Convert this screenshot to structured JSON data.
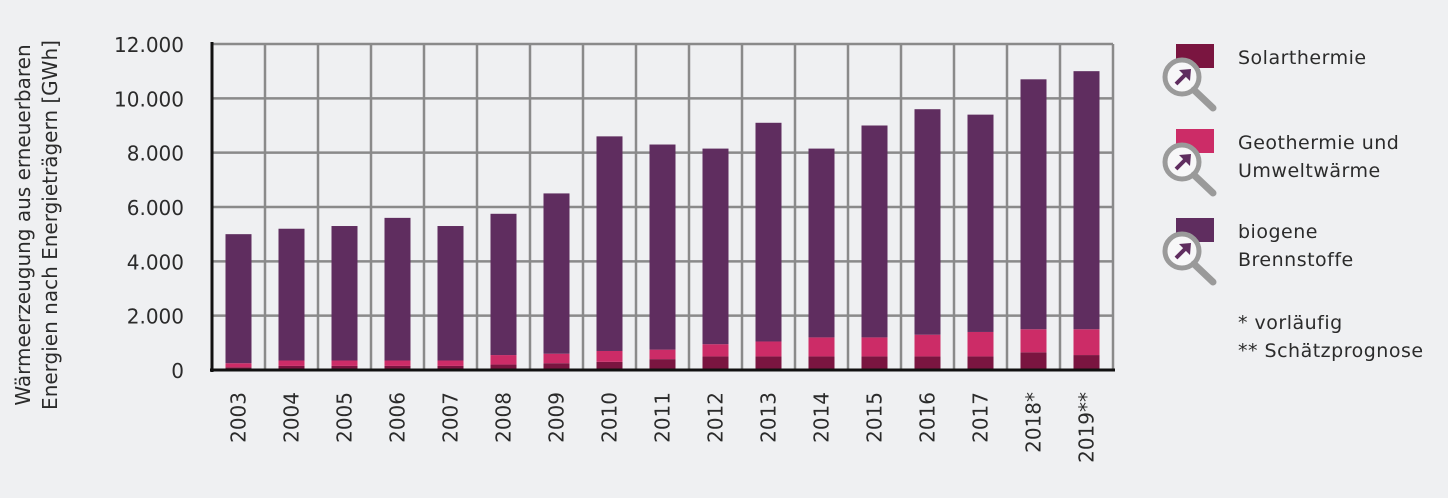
{
  "chart_data": {
    "type": "bar",
    "stacked": true,
    "categories": [
      "2003",
      "2004",
      "2005",
      "2006",
      "2007",
      "2008",
      "2009",
      "2010",
      "2011",
      "2012",
      "2013",
      "2014",
      "2015",
      "2016",
      "2017",
      "2018*",
      "2019**"
    ],
    "series": [
      {
        "name": "Solarthermie",
        "color": "#7a1540",
        "values": [
          100,
          150,
          150,
          150,
          150,
          200,
          250,
          300,
          400,
          500,
          500,
          500,
          500,
          500,
          500,
          650,
          550
        ]
      },
      {
        "name": "Geothermie und Umweltwärme",
        "color": "#cc2c67",
        "values": [
          150,
          200,
          200,
          200,
          200,
          350,
          350,
          400,
          350,
          450,
          550,
          700,
          700,
          800,
          900,
          850,
          950
        ]
      },
      {
        "name": "biogene Brennstoffe",
        "color": "#5f2d5f",
        "values": [
          4750,
          4850,
          4950,
          5250,
          4950,
          5200,
          5900,
          7900,
          7550,
          7200,
          8050,
          6950,
          7800,
          8300,
          8000,
          9200,
          9500
        ]
      }
    ],
    "yticks": [
      "0",
      "2.000",
      "4.000",
      "6.000",
      "8.000",
      "10.000",
      "12.000"
    ],
    "ylim": [
      0,
      12000
    ],
    "ylabel_line1": "Wärmeerzeugung aus erneuerbaren",
    "ylabel_line2": "Energien nach Energieträgern [GWh]",
    "grid": true,
    "legend_position": "right"
  },
  "legend": {
    "items": [
      {
        "label_line1": "Solarthermie",
        "label_line2": "",
        "color": "#7a1540",
        "icon": "magnifier-arrow-icon"
      },
      {
        "label_line1": "Geothermie und",
        "label_line2": "Umweltwärme",
        "color": "#cc2c67",
        "icon": "magnifier-arrow-icon"
      },
      {
        "label_line1": "biogene",
        "label_line2": "Brennstoffe",
        "color": "#5f2d5f",
        "icon": "magnifier-arrow-icon"
      }
    ],
    "note1": "* vorläufig",
    "note2": "** Schätzprognose"
  },
  "colors": {
    "grid": "#8a8a8a",
    "axis": "#111111",
    "text": "#2b2b2b",
    "icon_gray": "#9a9a9a",
    "icon_arrow": "#5f2d5f"
  }
}
